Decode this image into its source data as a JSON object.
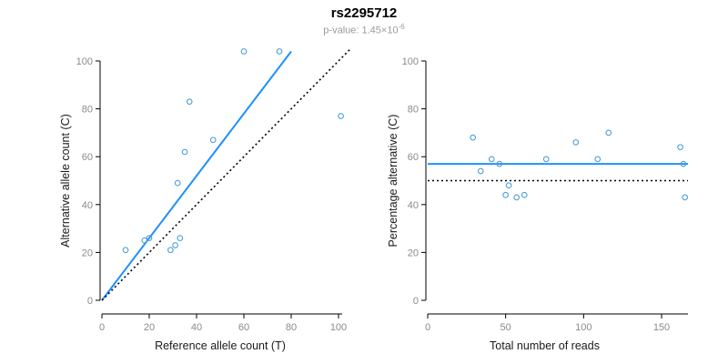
{
  "header": {
    "title": "rs2295712",
    "subtitle_text": "p-value: 1.45×10",
    "subtitle_exponent": "-6"
  },
  "colors": {
    "accent": "#1E90FF",
    "point": "#4F9FD8",
    "reference": "#000000",
    "subtitle": "#9A9A9A"
  },
  "chart_data": [
    {
      "type": "scatter",
      "name": "allele-counts",
      "xlabel": "Reference allele count (T)",
      "ylabel": "Alternative allele count (C)",
      "xlim": [
        0,
        100
      ],
      "ylim": [
        0,
        100
      ],
      "xticks": [
        0,
        20,
        40,
        60,
        80,
        100
      ],
      "yticks": [
        0,
        20,
        40,
        60,
        80,
        100
      ],
      "grid": false,
      "points": [
        [
          10,
          21
        ],
        [
          18,
          25
        ],
        [
          20,
          26
        ],
        [
          29,
          21
        ],
        [
          31,
          23
        ],
        [
          33,
          26
        ],
        [
          32,
          49
        ],
        [
          35,
          62
        ],
        [
          37,
          83
        ],
        [
          47,
          67
        ],
        [
          60,
          104
        ],
        [
          75,
          104
        ],
        [
          101,
          77
        ]
      ],
      "lines": [
        {
          "name": "regression-line",
          "style": "solid",
          "color_key": "accent",
          "from": [
            0,
            0
          ],
          "to": [
            80,
            104
          ]
        },
        {
          "name": "identity-line",
          "style": "dotted",
          "color_key": "reference",
          "from": [
            0,
            0
          ],
          "to": [
            105,
            105
          ]
        }
      ]
    },
    {
      "type": "scatter",
      "name": "percentage-vs-reads",
      "xlabel": "Total number of reads",
      "ylabel": "Percentage alternative (C)",
      "xlim": [
        0,
        150
      ],
      "ylim": [
        0,
        100
      ],
      "xticks": [
        0,
        50,
        100,
        150
      ],
      "yticks": [
        0,
        20,
        40,
        60,
        80,
        100
      ],
      "grid": false,
      "points": [
        [
          29,
          68
        ],
        [
          34,
          54
        ],
        [
          41,
          59
        ],
        [
          46,
          57
        ],
        [
          50,
          44
        ],
        [
          52,
          48
        ],
        [
          57,
          43
        ],
        [
          62,
          44
        ],
        [
          76,
          59
        ],
        [
          95,
          66
        ],
        [
          109,
          59
        ],
        [
          116,
          70
        ],
        [
          162,
          64
        ],
        [
          164,
          57
        ],
        [
          165,
          43
        ]
      ],
      "lines": [
        {
          "name": "mean-percentage-line",
          "style": "solid",
          "color_key": "accent",
          "hline": 57
        },
        {
          "name": "expected-percentage-line",
          "style": "dotted",
          "color_key": "reference",
          "hline": 50
        }
      ]
    }
  ]
}
